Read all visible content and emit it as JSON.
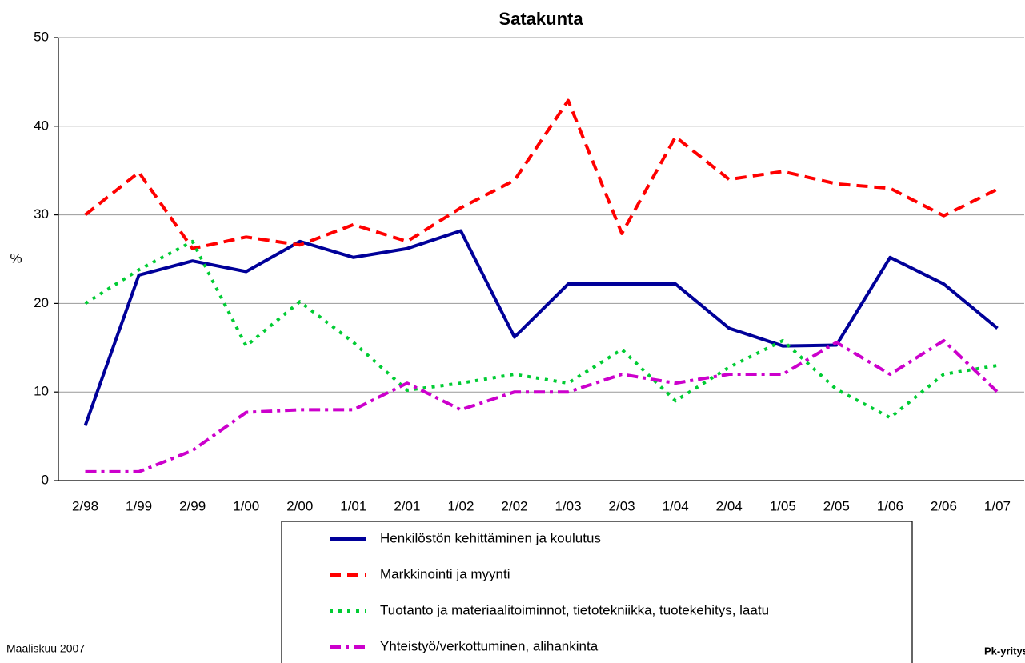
{
  "chart_data": {
    "type": "line",
    "title": "Satakunta",
    "y_label": "%",
    "categories": [
      "2/98",
      "1/99",
      "2/99",
      "1/00",
      "2/00",
      "1/01",
      "2/01",
      "1/02",
      "2/02",
      "1/03",
      "2/03",
      "1/04",
      "2/04",
      "1/05",
      "2/05",
      "1/06",
      "2/06",
      "1/07"
    ],
    "series": [
      {
        "name": "Henkilöstön kehittäminen ja koulutus",
        "color": "#000099",
        "dash": "solid",
        "values": [
          6.2,
          23.2,
          24.8,
          23.6,
          27,
          25.2,
          26.2,
          28.2,
          16.2,
          22.2,
          22.2,
          22.2,
          17.2,
          15.2,
          15.3,
          25.2,
          22.2,
          17.2
        ]
      },
      {
        "name": "Markkinointi ja myynti",
        "color": "#ff0000",
        "dash": "dashed",
        "values": [
          30,
          34.8,
          26.2,
          27.5,
          26.6,
          28.9,
          27,
          30.8,
          33.9,
          42.9,
          27.9,
          38.8,
          34,
          34.9,
          33.5,
          33,
          29.9,
          32.9
        ]
      },
      {
        "name": "Tuotanto ja materiaalitoiminnot, tietotekniikka, tuotekehitys, laatu",
        "color": "#00cc33",
        "dash": "dotted",
        "values": [
          20,
          23.8,
          27,
          15.2,
          20.2,
          15.6,
          10.2,
          11,
          12,
          11,
          14.8,
          9,
          12.8,
          15.8,
          10.3,
          7.1,
          12,
          13
        ]
      },
      {
        "name": "Yhteistyö/verkottuminen, alihankinta",
        "color": "#cc00cc",
        "dash": "dashdot",
        "values": [
          1,
          1,
          3.4,
          7.7,
          8,
          8,
          11,
          8,
          10,
          10,
          12,
          11,
          12,
          12,
          15.6,
          12,
          15.8,
          10
        ]
      }
    ],
    "ylim": [
      0,
      50
    ],
    "yticks": [
      0,
      10,
      20,
      30,
      40,
      50
    ],
    "grid": true,
    "footer_left": "Maaliskuu 2007",
    "footer_right": "Pk-yritysb"
  }
}
